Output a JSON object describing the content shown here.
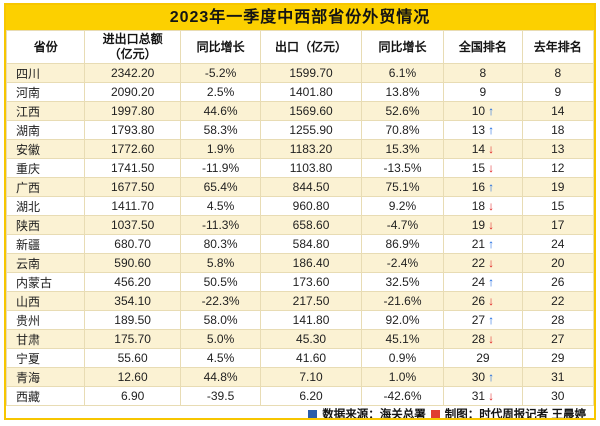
{
  "chart_data": {
    "type": "table",
    "title": "2023年一季度中西部省份外贸情况",
    "columns": [
      "省份",
      "进出口总额\n（亿元）",
      "同比增长",
      "出口（亿元）",
      "同比增长",
      "全国排名",
      "去年排名"
    ],
    "rows": [
      {
        "province": "四川",
        "total": "2342.20",
        "total_yoy": "-5.2%",
        "export": "1599.70",
        "export_yoy": "6.1%",
        "rank": "8",
        "trend": "",
        "last_rank": "8"
      },
      {
        "province": "河南",
        "total": "2090.20",
        "total_yoy": "2.5%",
        "export": "1401.80",
        "export_yoy": "13.8%",
        "rank": "9",
        "trend": "",
        "last_rank": "9"
      },
      {
        "province": "江西",
        "total": "1997.80",
        "total_yoy": "44.6%",
        "export": "1569.60",
        "export_yoy": "52.6%",
        "rank": "10",
        "trend": "up",
        "last_rank": "14"
      },
      {
        "province": "湖南",
        "total": "1793.80",
        "total_yoy": "58.3%",
        "export": "1255.90",
        "export_yoy": "70.8%",
        "rank": "13",
        "trend": "up",
        "last_rank": "18"
      },
      {
        "province": "安徽",
        "total": "1772.60",
        "total_yoy": "1.9%",
        "export": "1183.20",
        "export_yoy": "15.3%",
        "rank": "14",
        "trend": "down",
        "last_rank": "13"
      },
      {
        "province": "重庆",
        "total": "1741.50",
        "total_yoy": "-11.9%",
        "export": "1103.80",
        "export_yoy": "-13.5%",
        "rank": "15",
        "trend": "down",
        "last_rank": "12"
      },
      {
        "province": "广西",
        "total": "1677.50",
        "total_yoy": "65.4%",
        "export": "844.50",
        "export_yoy": "75.1%",
        "rank": "16",
        "trend": "up",
        "last_rank": "19"
      },
      {
        "province": "湖北",
        "total": "1411.70",
        "total_yoy": "4.5%",
        "export": "960.80",
        "export_yoy": "9.2%",
        "rank": "18",
        "trend": "down",
        "last_rank": "15"
      },
      {
        "province": "陕西",
        "total": "1037.50",
        "total_yoy": "-11.3%",
        "export": "658.60",
        "export_yoy": "-4.7%",
        "rank": "19",
        "trend": "down",
        "last_rank": "17"
      },
      {
        "province": "新疆",
        "total": "680.70",
        "total_yoy": "80.3%",
        "export": "584.80",
        "export_yoy": "86.9%",
        "rank": "21",
        "trend": "up",
        "last_rank": "24"
      },
      {
        "province": "云南",
        "total": "590.60",
        "total_yoy": "5.8%",
        "export": "186.40",
        "export_yoy": "-2.4%",
        "rank": "22",
        "trend": "down",
        "last_rank": "20"
      },
      {
        "province": "内蒙古",
        "total": "456.20",
        "total_yoy": "50.5%",
        "export": "173.60",
        "export_yoy": "32.5%",
        "rank": "24",
        "trend": "up",
        "last_rank": "26"
      },
      {
        "province": "山西",
        "total": "354.10",
        "total_yoy": "-22.3%",
        "export": "217.50",
        "export_yoy": "-21.6%",
        "rank": "26",
        "trend": "down",
        "last_rank": "22"
      },
      {
        "province": "贵州",
        "total": "189.50",
        "total_yoy": "58.0%",
        "export": "141.80",
        "export_yoy": "92.0%",
        "rank": "27",
        "trend": "up",
        "last_rank": "28"
      },
      {
        "province": "甘肃",
        "total": "175.70",
        "total_yoy": "5.0%",
        "export": "45.30",
        "export_yoy": "45.1%",
        "rank": "28",
        "trend": "down",
        "last_rank": "27"
      },
      {
        "province": "宁夏",
        "total": "55.60",
        "total_yoy": "4.5%",
        "export": "41.60",
        "export_yoy": "0.9%",
        "rank": "29",
        "trend": "",
        "last_rank": "29"
      },
      {
        "province": "青海",
        "total": "12.60",
        "total_yoy": "44.8%",
        "export": "7.10",
        "export_yoy": "1.0%",
        "rank": "30",
        "trend": "up",
        "last_rank": "31"
      },
      {
        "province": "西藏",
        "total": "6.90",
        "total_yoy": "-39.5",
        "export": "6.20",
        "export_yoy": "-42.6%",
        "rank": "31",
        "trend": "down",
        "last_rank": "30"
      }
    ]
  },
  "footer": {
    "source": "数据来源：海关总署",
    "credit": "制图：时代周报记者 王晨婷"
  },
  "icons": {
    "up_arrow": "↑",
    "down_arrow": "↓"
  },
  "colors": {
    "title_bg": "#fcd000",
    "frame_border": "#f7c600",
    "row_stripe": "#fbf2d3",
    "up_arrow": "#1565e0",
    "down_arrow": "#e02020",
    "source_marker": "#2a5caa",
    "credit_marker": "#e03c31"
  }
}
